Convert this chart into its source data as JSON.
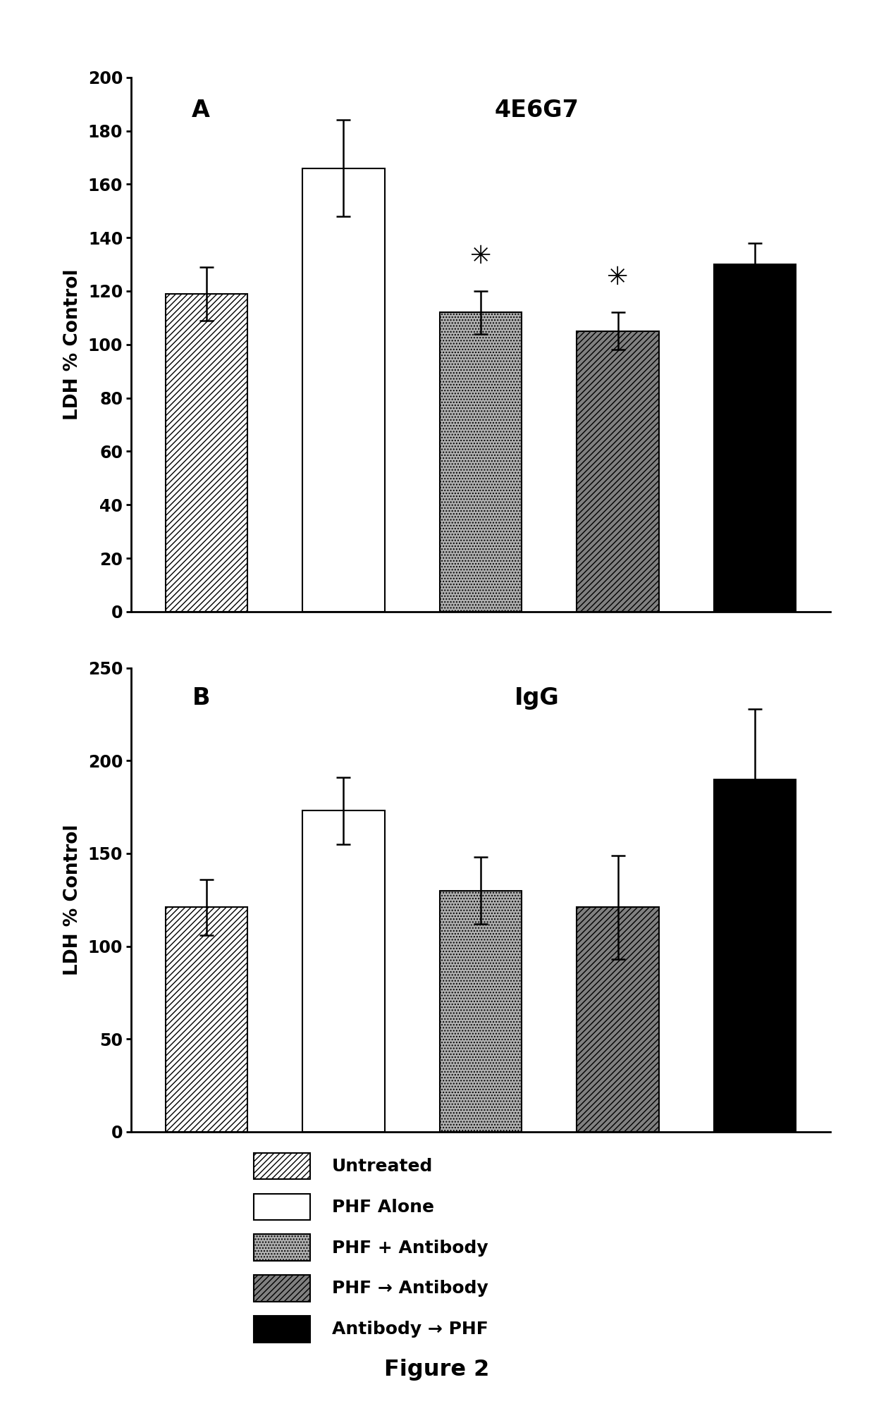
{
  "panel_A": {
    "title": "4E6G7",
    "label": "A",
    "values": [
      119,
      166,
      112,
      105,
      130
    ],
    "errors": [
      10,
      18,
      8,
      7,
      8
    ],
    "ylim": [
      0,
      200
    ],
    "yticks": [
      0,
      20,
      40,
      60,
      80,
      100,
      120,
      140,
      160,
      180,
      200
    ],
    "significance": [
      false,
      false,
      true,
      true,
      false
    ]
  },
  "panel_B": {
    "title": "IgG",
    "label": "B",
    "values": [
      121,
      173,
      130,
      121,
      190
    ],
    "errors": [
      15,
      18,
      18,
      28,
      38
    ],
    "ylim": [
      0,
      250
    ],
    "yticks": [
      0,
      50,
      100,
      150,
      200,
      250
    ],
    "significance": [
      false,
      false,
      false,
      false,
      false
    ]
  },
  "ylabel": "LDH % Control",
  "figure_label": "Figure 2",
  "bar_width": 0.6,
  "colors": [
    "white",
    "white",
    "#b0b0b0",
    "#808080",
    "black"
  ],
  "hatches": [
    "////",
    "",
    "....",
    "////",
    ""
  ],
  "legend_labels": [
    "Untreated",
    "PHF Alone",
    "PHF + Antibody",
    "PHF → Antibody",
    "Antibody → PHF"
  ],
  "legend_hatches": [
    "////",
    "",
    "....",
    "////",
    ""
  ],
  "legend_facecolors": [
    "white",
    "white",
    "#b0b0b0",
    "#808080",
    "black"
  ],
  "legend_edgecolors": [
    "black",
    "black",
    "black",
    "black",
    "black"
  ]
}
